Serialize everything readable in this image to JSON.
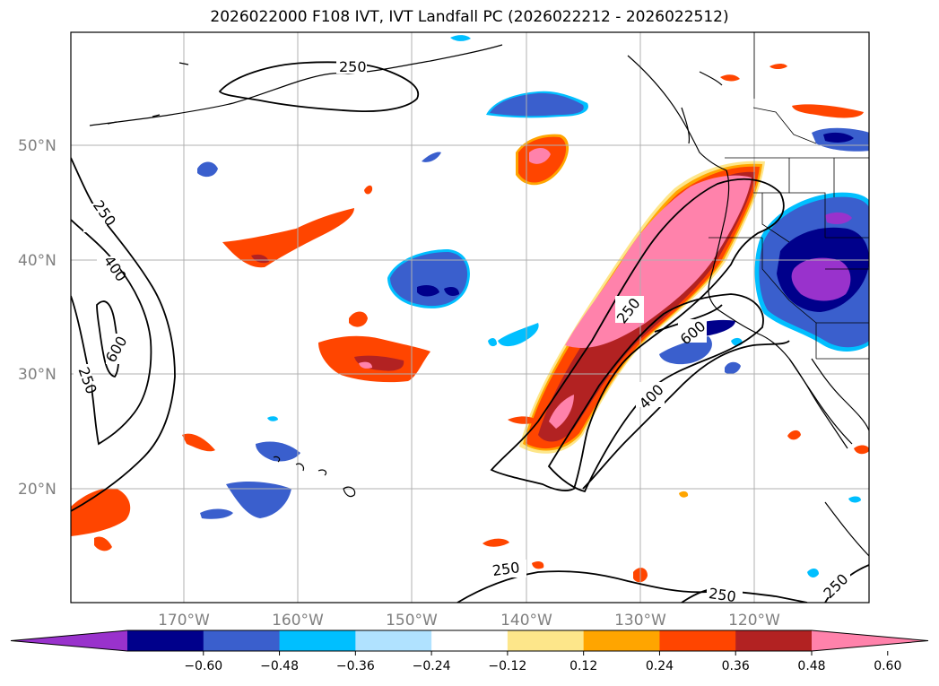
{
  "title": "2026022000 F108 IVT, IVT Landfall PC (2026022212 - 2026022512)",
  "lat_labels": [
    "50°N",
    "40°N",
    "30°N",
    "20°N"
  ],
  "lon_labels": [
    "170°W",
    "160°W",
    "150°W",
    "140°W",
    "130°W",
    "120°W"
  ],
  "contour_labels": [
    "250",
    "250",
    "400",
    "600",
    "250",
    "250",
    "600",
    "400",
    "250",
    "250",
    "250"
  ],
  "colorbar": {
    "colors": [
      "#9932cc",
      "#00008b",
      "#3a5fcd",
      "#00bfff",
      "#b0e2ff",
      "#ffffff",
      "#fde68a",
      "#ffa500",
      "#ff4500",
      "#b22222",
      "#ff82ab"
    ],
    "tick_labels": [
      "−0.60",
      "−0.48",
      "−0.36",
      "−0.24",
      "−0.12",
      "0.12",
      "0.24",
      "0.36",
      "0.48",
      "0.60"
    ],
    "extend": "both"
  },
  "map": {
    "projection": "PlateCarree",
    "gridlines": true
  }
}
